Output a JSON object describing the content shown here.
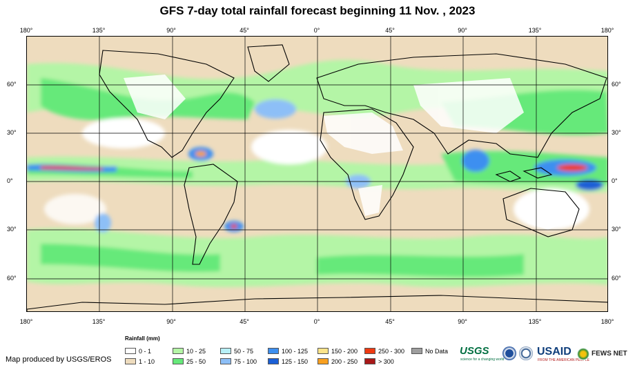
{
  "title": "GFS 7-day total rainfall forecast beginning 11 Nov. , 2023",
  "lon_ticks": [
    "180°",
    "135°",
    "90°",
    "45°",
    "0°",
    "45°",
    "90°",
    "135°",
    "180°"
  ],
  "lat_ticks": [
    "60°",
    "30°",
    "0°",
    "30°",
    "60°"
  ],
  "legend": {
    "title": "Rainfall (mm)",
    "items": [
      {
        "label": "0 - 1",
        "color": "#ffffff"
      },
      {
        "label": "1 - 10",
        "color": "#eedcbe"
      },
      {
        "label": "10 - 25",
        "color": "#b4f5a6"
      },
      {
        "label": "25 - 50",
        "color": "#66e97a"
      },
      {
        "label": "50 - 75",
        "color": "#b8f0f8"
      },
      {
        "label": "75 - 100",
        "color": "#8dbff7"
      },
      {
        "label": "100 - 125",
        "color": "#3d8ff0"
      },
      {
        "label": "125 - 150",
        "color": "#1a5fd6"
      },
      {
        "label": "150 - 200",
        "color": "#fde48a"
      },
      {
        "label": "200 - 250",
        "color": "#f9a020"
      },
      {
        "label": "250 - 300",
        "color": "#ee3a12"
      },
      {
        "label": "> 300",
        "color": "#a81818"
      },
      {
        "label": "No Data",
        "color": "#9e9e9e"
      }
    ]
  },
  "producer": "Map produced by USGS/EROS",
  "logos": {
    "usgs": "USGS",
    "usgs_tagline": "science for a changing world",
    "usaid": "USAID",
    "usaid_tagline": "FROM THE AMERICAN PEOPLE",
    "fews": "FEWS NET"
  }
}
